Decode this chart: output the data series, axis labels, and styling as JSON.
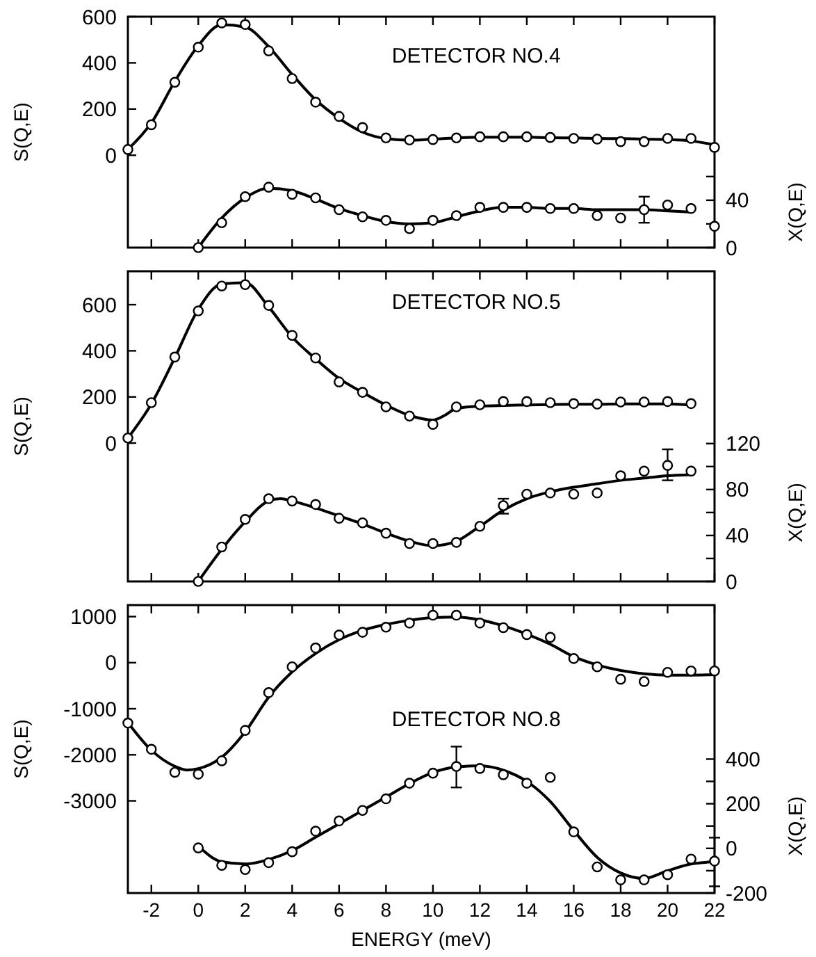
{
  "chart_data": [
    {
      "type": "scatter",
      "ylabel": "S(Q,E)",
      "y2label": "X(Q,E)",
      "annotations": [
        "DETECTOR NO.4"
      ],
      "xlim": [
        -3,
        22
      ],
      "xticks": [
        -2,
        0,
        2,
        4,
        6,
        8,
        10,
        12,
        14,
        16,
        18,
        20,
        22
      ],
      "ylim": [
        -400,
        600
      ],
      "yticks": [
        0,
        200,
        400,
        600
      ],
      "y2lim": [
        0,
        195
      ],
      "y2ticks": [
        0,
        {
          "value": 20,
          "label": null
        },
        40,
        {
          "value": 60,
          "label": null
        }
      ],
      "tick_labels": "y",
      "series": [
        {
          "type": "line",
          "color": "#000000",
          "x": [
            -3,
            -2,
            -1,
            0,
            1,
            2,
            3,
            4,
            5,
            6,
            7,
            8,
            9,
            10,
            11,
            12,
            13,
            14,
            15,
            16,
            17,
            18,
            19,
            20,
            21,
            22
          ],
          "values": [
            25,
            140,
            320,
            475,
            565,
            555,
            470,
            350,
            240,
            160,
            100,
            72,
            65,
            70,
            75,
            78,
            78,
            78,
            76,
            75,
            73,
            72,
            70,
            68,
            62,
            45
          ]
        },
        {
          "marker": "circle",
          "color": "#000000",
          "x": [
            -3,
            -2,
            -1,
            0,
            1,
            2,
            3,
            4,
            5,
            6,
            7,
            8,
            9,
            10,
            11,
            12,
            13,
            14,
            15,
            16,
            17,
            18,
            19,
            20,
            21,
            22
          ],
          "values": [
            25,
            132,
            316,
            468,
            573,
            566,
            452,
            332,
            230,
            168,
            120,
            75,
            66,
            68,
            75,
            80,
            80,
            80,
            77,
            73,
            70,
            59,
            59,
            73,
            73,
            34
          ]
        },
        {
          "type": "line",
          "axis": "y2",
          "color": "#000000",
          "x": [
            0,
            1,
            2,
            3,
            4,
            5,
            6,
            7,
            8,
            9,
            10,
            11,
            12,
            13,
            14,
            15,
            16,
            17,
            18,
            19,
            20,
            21
          ],
          "values": [
            0,
            25,
            42,
            50,
            48,
            41,
            33,
            27,
            22,
            20,
            21,
            26,
            31,
            34,
            34,
            33,
            33,
            32,
            32,
            32,
            31,
            30
          ]
        },
        {
          "axis": "y2",
          "marker": "circle",
          "color": "#000000",
          "x": [
            0,
            1,
            2,
            3,
            4,
            5,
            6,
            7,
            8,
            9,
            10,
            11,
            12,
            13,
            14,
            15,
            16,
            17,
            18,
            19,
            20,
            21,
            22
          ],
          "values": [
            0,
            21,
            43,
            51,
            45,
            42,
            32,
            26,
            23,
            16,
            23,
            27,
            34,
            34,
            34,
            33,
            33,
            27,
            25,
            32,
            36,
            33,
            18
          ],
          "errors": [
            null,
            null,
            null,
            null,
            null,
            null,
            null,
            null,
            null,
            null,
            null,
            null,
            null,
            null,
            null,
            null,
            null,
            null,
            null,
            [
              21,
              43
            ],
            null,
            null,
            null
          ]
        }
      ]
    },
    {
      "type": "scatter",
      "ylabel": "S(Q,E)",
      "y2label": "X(Q,E)",
      "annotations": [
        "DETECTOR NO.5"
      ],
      "xlim": [
        -3,
        22
      ],
      "xticks": [
        -2,
        0,
        2,
        4,
        6,
        8,
        10,
        12,
        14,
        16,
        18,
        20,
        22
      ],
      "ylim": [
        -600,
        745
      ],
      "yticks": [
        0,
        200,
        400,
        600
      ],
      "y2lim": [
        0,
        270
      ],
      "y2ticks": [
        0,
        {
          "value": 20,
          "label": null
        },
        40,
        {
          "value": 60,
          "label": null
        },
        80,
        {
          "value": 100,
          "label": null
        },
        120
      ],
      "tick_labels": "y",
      "series": [
        {
          "type": "line",
          "color": "#000000",
          "x": [
            -3,
            -2,
            -1,
            0,
            1,
            2,
            3,
            4,
            5,
            6,
            7,
            8,
            9,
            10,
            10.5,
            11,
            12,
            13,
            14,
            15,
            16,
            17,
            18,
            19,
            20,
            21
          ],
          "values": [
            22,
            170,
            370,
            580,
            690,
            695,
            590,
            460,
            365,
            280,
            220,
            165,
            120,
            100,
            120,
            150,
            160,
            163,
            165,
            167,
            168,
            168,
            170,
            170,
            170,
            165
          ]
        },
        {
          "marker": "circle",
          "color": "#000000",
          "x": [
            -3,
            -2,
            -1,
            0,
            1,
            2,
            3,
            4,
            5,
            6,
            7,
            8,
            9,
            10,
            11,
            12,
            13,
            14,
            15,
            16,
            17,
            18,
            19,
            20,
            21
          ],
          "values": [
            22,
            175,
            373,
            573,
            681,
            687,
            597,
            467,
            369,
            265,
            220,
            157,
            117,
            81,
            157,
            166,
            180,
            180,
            175,
            171,
            169,
            178,
            178,
            180,
            171
          ]
        },
        {
          "type": "line",
          "axis": "y2",
          "color": "#000000",
          "x": [
            0,
            1,
            2,
            3,
            3.5,
            4,
            5,
            6,
            7,
            8,
            9,
            10,
            11,
            12,
            13,
            14,
            15,
            16,
            17,
            18,
            19,
            20,
            21
          ],
          "values": [
            0,
            28,
            52,
            70,
            72,
            70,
            64,
            57,
            50,
            42,
            35,
            31,
            35,
            48,
            62,
            72,
            78,
            82,
            85,
            88,
            90,
            92,
            93
          ]
        },
        {
          "axis": "y2",
          "marker": "circle",
          "color": "#000000",
          "x": [
            0,
            1,
            2,
            3,
            4,
            5,
            6,
            7,
            8,
            9,
            10,
            11,
            12,
            13,
            14,
            15,
            16,
            17,
            18,
            19,
            20,
            21
          ],
          "values": [
            0,
            30,
            54,
            72,
            70,
            67,
            55,
            51,
            42,
            33,
            33,
            34,
            48,
            66,
            76,
            77,
            76,
            77,
            92,
            96,
            101,
            96
          ],
          "errors": [
            null,
            null,
            null,
            null,
            null,
            null,
            null,
            null,
            null,
            null,
            null,
            null,
            null,
            [
              59,
              72
            ],
            null,
            null,
            null,
            null,
            null,
            null,
            [
              88,
              115
            ],
            null
          ]
        }
      ]
    },
    {
      "type": "scatter",
      "xlabel": "ENERGY (meV)",
      "ylabel": "S(Q,E)",
      "y2label": "X(Q,E)",
      "annotations": [
        "DETECTOR NO.8"
      ],
      "xlim": [
        -3,
        22
      ],
      "xticks": [
        -2,
        0,
        2,
        4,
        6,
        8,
        10,
        12,
        14,
        16,
        18,
        20,
        22
      ],
      "ylim": [
        -5000,
        1250
      ],
      "yticks": [
        -3000,
        -2000,
        -1000,
        0,
        1000
      ],
      "y2lim": [
        -200,
        1090
      ],
      "y2ticks": [
        -200,
        {
          "value": -100,
          "label": null
        },
        0,
        {
          "value": 100,
          "label": null
        },
        200,
        {
          "value": 300,
          "label": null
        },
        400
      ],
      "series": [
        {
          "type": "line",
          "color": "#000000",
          "x": [
            -3,
            -2,
            -1,
            -0.5,
            0,
            1,
            2,
            3,
            4,
            5,
            6,
            7,
            8,
            9,
            10,
            11,
            12,
            13,
            14,
            15,
            16,
            17,
            18,
            19,
            20,
            21,
            22
          ],
          "values": [
            -1300,
            -1900,
            -2250,
            -2330,
            -2300,
            -2050,
            -1500,
            -750,
            -200,
            200,
            500,
            700,
            830,
            920,
            980,
            990,
            930,
            800,
            620,
            400,
            130,
            -50,
            -170,
            -240,
            -270,
            -270,
            -260
          ]
        },
        {
          "marker": "circle",
          "color": "#000000",
          "x": [
            -3,
            -2,
            -1,
            0,
            1,
            2,
            3,
            4,
            5,
            6,
            7,
            8,
            9,
            10,
            11,
            12,
            13,
            14,
            15,
            16,
            17,
            18,
            19,
            20,
            21,
            22
          ],
          "values": [
            -1310,
            -1880,
            -2380,
            -2420,
            -2130,
            -1470,
            -650,
            -90,
            320,
            600,
            660,
            770,
            860,
            1030,
            1030,
            860,
            760,
            610,
            550,
            90,
            -90,
            -360,
            -410,
            -210,
            -180,
            -180
          ]
        },
        {
          "type": "line",
          "axis": "y2",
          "color": "#000000",
          "x": [
            0,
            1,
            2,
            3,
            4,
            5,
            6,
            7,
            8,
            9,
            10,
            11,
            12,
            13,
            14,
            15,
            16,
            17,
            18,
            19,
            20,
            21,
            22
          ],
          "values": [
            10,
            -60,
            -70,
            -50,
            -10,
            50,
            110,
            170,
            230,
            290,
            340,
            365,
            370,
            350,
            300,
            210,
            80,
            -40,
            -110,
            -135,
            -100,
            -70,
            -60
          ]
        },
        {
          "axis": "y2",
          "marker": "circle",
          "color": "#000000",
          "x": [
            0,
            1,
            2,
            3,
            4,
            5,
            6,
            7,
            8,
            9,
            10,
            11,
            12,
            13,
            14,
            15,
            16,
            17,
            18,
            19,
            20,
            21,
            22
          ],
          "values": [
            2,
            -76,
            -95,
            -64,
            -15,
            77,
            123,
            170,
            222,
            292,
            337,
            367,
            358,
            330,
            292,
            318,
            74,
            -83,
            -141,
            -141,
            -118,
            -48,
            -57
          ],
          "errors": [
            null,
            null,
            null,
            null,
            null,
            null,
            null,
            null,
            null,
            null,
            null,
            [
              273,
              456
            ],
            null,
            null,
            null,
            null,
            null,
            null,
            null,
            null,
            null,
            null,
            [
              -170,
              48
            ]
          ]
        }
      ]
    }
  ]
}
